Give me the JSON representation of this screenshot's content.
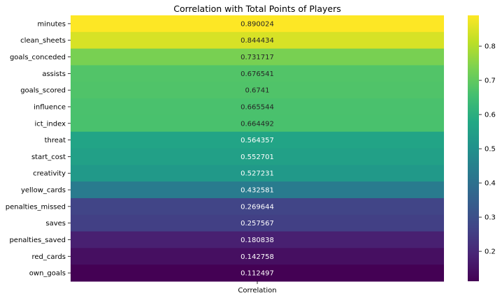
{
  "chart_data": {
    "type": "heatmap",
    "title": "Correlation with Total Points of Players",
    "column_labels": [
      "Correlation"
    ],
    "row_labels": [
      "minutes",
      "clean_sheets",
      "goals_conceded",
      "assists",
      "goals_scored",
      "influence",
      "ict_index",
      "threat",
      "start_cost",
      "creativity",
      "yellow_cards",
      "penalties_missed",
      "saves",
      "penalties_saved",
      "red_cards",
      "own_goals"
    ],
    "values": [
      0.890024,
      0.844434,
      0.731717,
      0.676541,
      0.6741,
      0.665544,
      0.664492,
      0.564357,
      0.552701,
      0.527231,
      0.432581,
      0.269644,
      0.257567,
      0.180838,
      0.142758,
      0.112497
    ],
    "value_labels": [
      "0.890024",
      "0.844434",
      "0.731717",
      "0.676541",
      "0.6741",
      "0.665544",
      "0.664492",
      "0.564357",
      "0.552701",
      "0.527231",
      "0.432581",
      "0.269644",
      "0.257567",
      "0.180838",
      "0.142758",
      "0.112497"
    ],
    "colormap": "viridis",
    "colorbar": {
      "range": [
        0.112497,
        0.890024
      ],
      "ticks": [
        0.2,
        0.3,
        0.4,
        0.5,
        0.6,
        0.7,
        0.8
      ],
      "tick_labels": [
        "0.2",
        "0.3",
        "0.4",
        "0.5",
        "0.6",
        "0.7",
        "0.8"
      ]
    }
  }
}
